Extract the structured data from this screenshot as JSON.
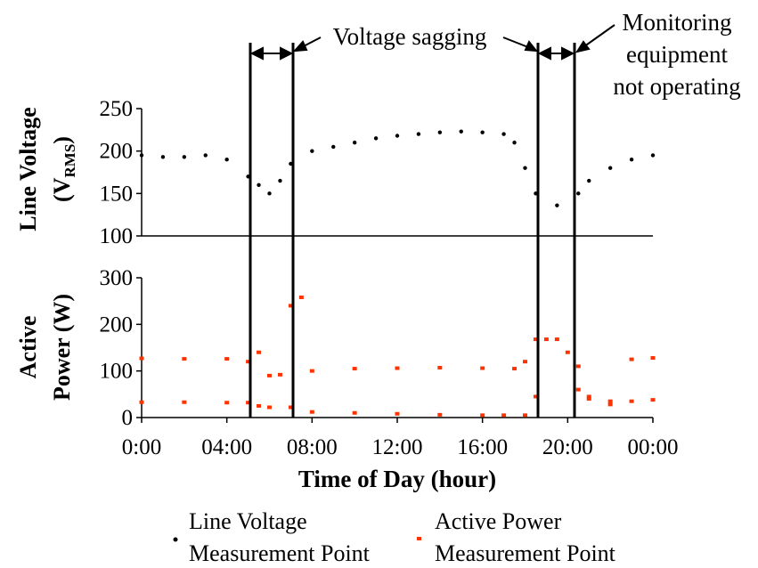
{
  "chart_data": [
    {
      "type": "scatter",
      "panel": "top",
      "ylabel_main": "Line Voltage",
      "ylabel_paren_open": "(V",
      "ylabel_sub": "RMS",
      "ylabel_paren_close": ")",
      "ylim": [
        100,
        250
      ],
      "y_ticks": [
        "100",
        "150",
        "200",
        "250"
      ],
      "series": [
        {
          "name": "Line Voltage Measurement Point",
          "color": "#000000",
          "x": [
            0,
            1,
            2,
            3,
            4,
            5,
            5.5,
            6,
            6.5,
            7,
            8,
            9,
            10,
            11,
            12,
            13,
            14,
            15,
            16,
            17,
            17.5,
            18,
            18.5,
            19.5,
            20.5,
            21,
            22,
            23,
            24
          ],
          "y": [
            195,
            193,
            193,
            195,
            190,
            170,
            160,
            150,
            165,
            185,
            200,
            205,
            210,
            215,
            218,
            220,
            222,
            223,
            222,
            220,
            210,
            180,
            150,
            136,
            150,
            165,
            180,
            190,
            195
          ]
        }
      ]
    },
    {
      "type": "scatter",
      "panel": "bottom",
      "ylabel": [
        "Active",
        "Power (W)"
      ],
      "ylim": [
        0,
        300
      ],
      "y_ticks": [
        "0",
        "100",
        "200",
        "300"
      ],
      "xlabel": "Time of Day (hour)",
      "x_ticks": [
        "0:00",
        "04:00",
        "08:00",
        "12:00",
        "16:00",
        "20:00",
        "00:00"
      ],
      "xlim": [
        0,
        24
      ],
      "series": [
        {
          "name": "Active Power Measurement Point",
          "color": "#ff3300",
          "x": [
            0,
            2,
            4,
            5,
            5.5,
            6,
            6.5,
            7,
            7.5,
            8,
            10,
            12,
            14,
            16,
            17.5,
            18,
            18.5,
            19,
            19.5,
            20,
            20.5,
            21,
            22,
            23,
            24
          ],
          "y": [
            127,
            126,
            126,
            120,
            140,
            90,
            92,
            240,
            258,
            100,
            105,
            106,
            107,
            106,
            105,
            120,
            168,
            168,
            168,
            140,
            110,
            45,
            35,
            125,
            128
          ]
        },
        {
          "name": "Active Power Measurement Point",
          "color": "#ff3300",
          "x": [
            0,
            2,
            4,
            5,
            5.5,
            6,
            7,
            8,
            10,
            12,
            14,
            16,
            17,
            18,
            18.5,
            20.5,
            21,
            22,
            23,
            24
          ],
          "y": [
            33,
            33,
            32,
            32,
            25,
            22,
            22,
            12,
            10,
            8,
            6,
            5,
            5,
            5,
            45,
            60,
            40,
            28,
            35,
            38
          ]
        }
      ]
    }
  ],
  "annotations": {
    "sagging": "Voltage sagging",
    "monitoring": [
      "Monitoring",
      "equipment",
      "not operating"
    ]
  },
  "legend": {
    "voltage": [
      "Line Voltage",
      "Measurement Point"
    ],
    "power": [
      "Active Power",
      "Measurement Point"
    ]
  },
  "colors": {
    "voltage": "#000000",
    "power": "#ff3300"
  }
}
